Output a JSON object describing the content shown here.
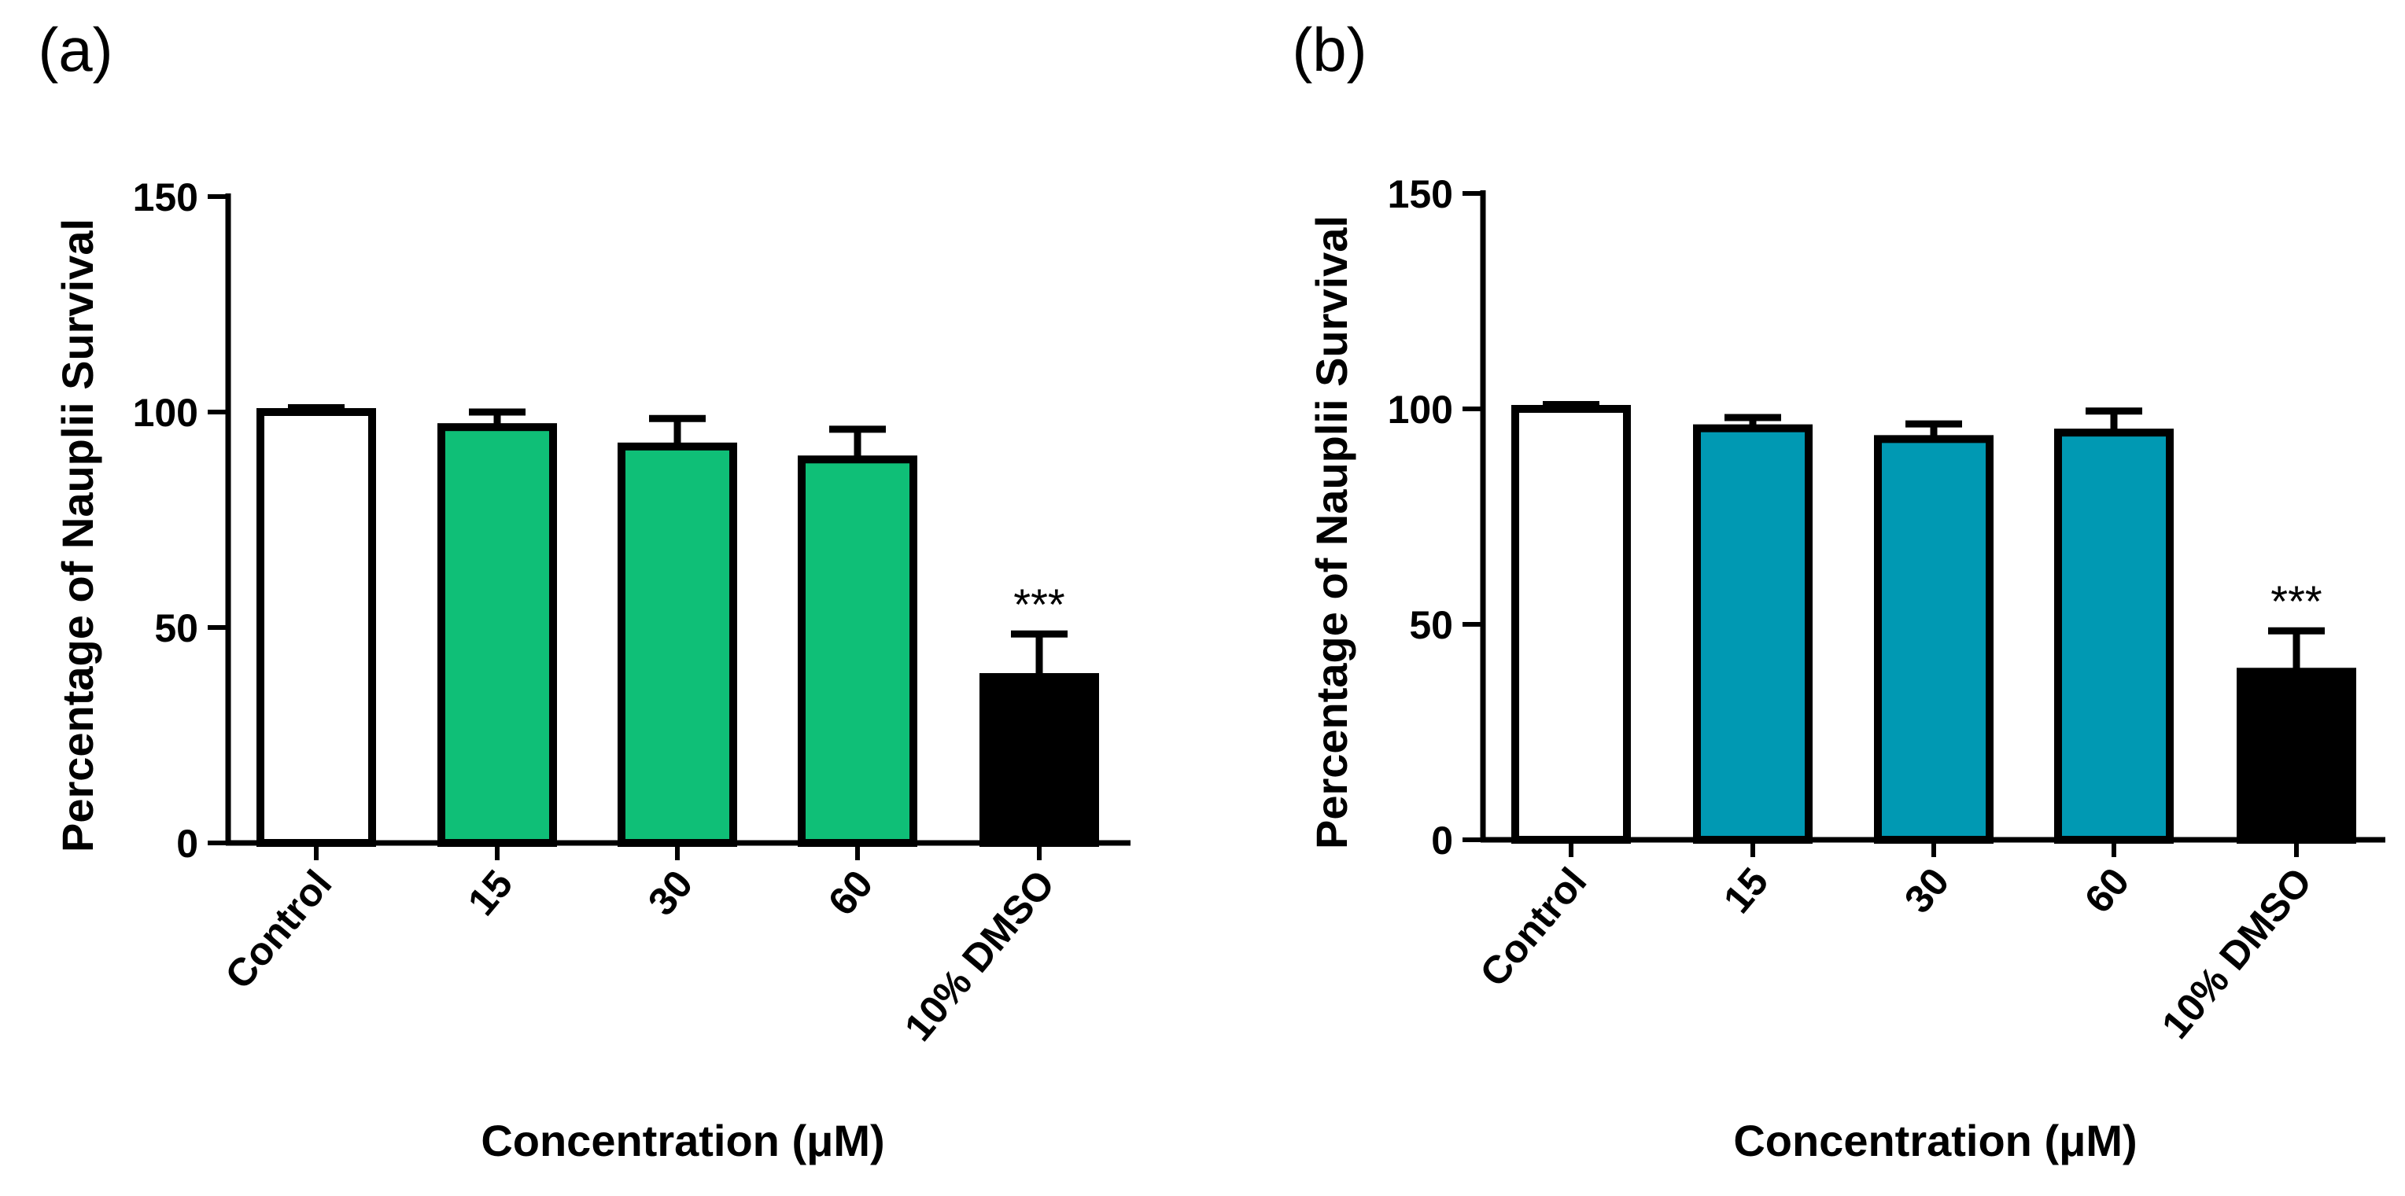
{
  "chart_data": [
    {
      "type": "bar",
      "panel_label": "(a)",
      "categories": [
        "Control",
        "15",
        "30",
        "60",
        "10% DMSO"
      ],
      "values": [
        100,
        96.5,
        92,
        89,
        38.5
      ],
      "errors": [
        1,
        3.5,
        6.5,
        7,
        10
      ],
      "bar_colors": [
        "#ffffff",
        "#0fbf77",
        "#0fbf77",
        "#0fbf77",
        "#000000"
      ],
      "annotations": [
        "",
        "",
        "",
        "",
        "***"
      ],
      "xlabel": "Concentration (μM)",
      "ylabel": "Percentage of Nauplii Survival",
      "ylim": [
        0,
        150
      ],
      "yticks": [
        0,
        50,
        100,
        150
      ],
      "yticklabels": [
        "0",
        "50",
        "100",
        "150"
      ]
    },
    {
      "type": "bar",
      "panel_label": "(b)",
      "categories": [
        "Control",
        "15",
        "30",
        "60",
        "10% DMSO"
      ],
      "values": [
        100,
        95.5,
        93,
        94.5,
        39
      ],
      "errors": [
        1,
        2.5,
        3.5,
        5,
        9.5
      ],
      "bar_colors": [
        "#ffffff",
        "#0099b3",
        "#0099b3",
        "#0099b3",
        "#000000"
      ],
      "annotations": [
        "",
        "",
        "",
        "",
        "***"
      ],
      "xlabel": "Concentration (μM)",
      "ylabel": "Percentage of Nauplii Survival",
      "ylim": [
        0,
        150
      ],
      "yticks": [
        0,
        50,
        100,
        150
      ],
      "yticklabels": [
        "0",
        "50",
        "100",
        "150"
      ]
    }
  ]
}
